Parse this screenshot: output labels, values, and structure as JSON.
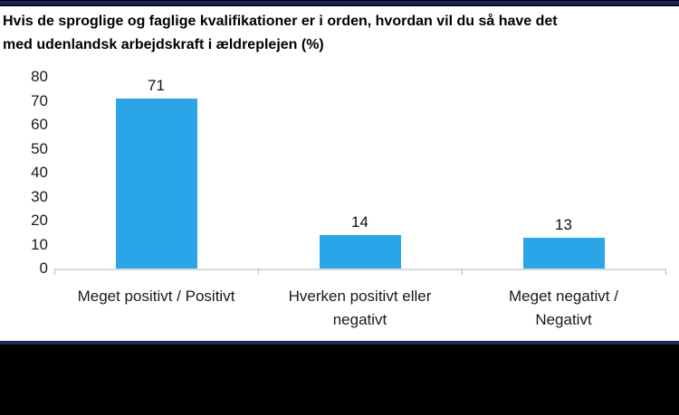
{
  "title": {
    "text": "Hvis de sproglige og faglige kvalifikationer er i orden, hvordan vil du så have det med udenlandsk arbejdskraft i ældreplejen (%)",
    "line1": "Hvis de sproglige og faglige kvalifikationer er i orden, hvordan vil du så have det",
    "line2": "med udenlandsk arbejdskraft i ældreplejen (%)"
  },
  "chart_data": {
    "type": "bar",
    "title": "Hvis de sproglige og faglige kvalifikationer er i orden, hvordan vil du så have det med udenlandsk arbejdskraft i ældreplejen (%)",
    "categories": [
      "Meget positivt / Positivt",
      "Hverken positivt eller negativt",
      "Meget negativt / Negativt"
    ],
    "category_label_lines": [
      [
        "Meget positivt / Positivt"
      ],
      [
        "Hverken positivt eller",
        "negativt"
      ],
      [
        "Meget negativt /",
        "Negativt"
      ]
    ],
    "values": [
      71,
      14,
      13
    ],
    "data_labels": [
      "71",
      "14",
      "13"
    ],
    "xlabel": "",
    "ylabel": "",
    "ylim": [
      0,
      80
    ],
    "yticks": [
      0,
      10,
      20,
      30,
      40,
      50,
      60,
      70,
      80
    ],
    "grid": false,
    "legend": false,
    "bar_color": "#2aa5e8",
    "axis_line_color": "#d9d9d9",
    "tick_color": "#bfbfbf"
  },
  "decor": {
    "top_band_color": "#1c2453",
    "bottom_line_color": "#1f2a5e",
    "bottom_band_color": "#000000"
  }
}
